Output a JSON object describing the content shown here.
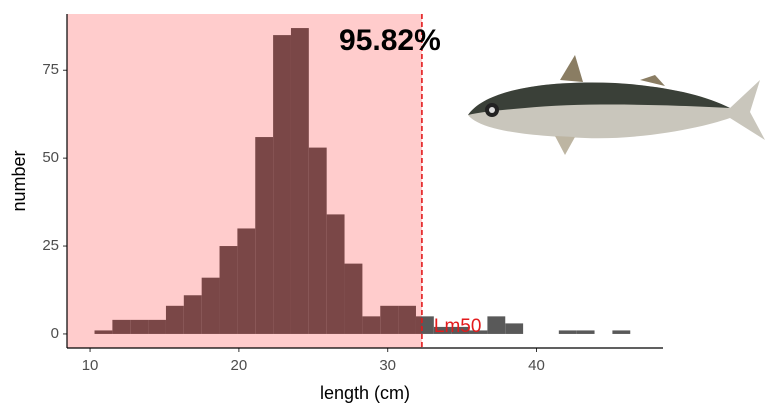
{
  "chart_data": {
    "type": "histogram",
    "x_label": "length (cm)",
    "y_label": "number",
    "bins": [
      10.3,
      11.5,
      12.7,
      13.9,
      15.1,
      16.3,
      17.5,
      18.7,
      19.9,
      21.1,
      22.3,
      23.5,
      24.7,
      25.9,
      27.1,
      28.3,
      29.5,
      30.7,
      31.9,
      33.1,
      34.3,
      35.5,
      36.7,
      37.9,
      39.1,
      40.3,
      41.5,
      42.7,
      43.9,
      45.1,
      46.3
    ],
    "counts": [
      1,
      4,
      4,
      4,
      8,
      11,
      16,
      25,
      30,
      56,
      85,
      87,
      53,
      34,
      20,
      5,
      8,
      8,
      5,
      2,
      2,
      1,
      5,
      3,
      0,
      0,
      1,
      1,
      0,
      1
    ],
    "color": "#595959",
    "lm50": {
      "value": 32.3,
      "label": "Lm50",
      "color": "#e31a1c"
    },
    "shade_color": "#ff0000",
    "annotation": "95.82%",
    "xlim": [
      8.45,
      48.5
    ],
    "xticks": [
      10,
      20,
      30,
      40
    ],
    "ylim": [
      -4,
      91
    ],
    "yticks": [
      0,
      25,
      50,
      75
    ]
  }
}
